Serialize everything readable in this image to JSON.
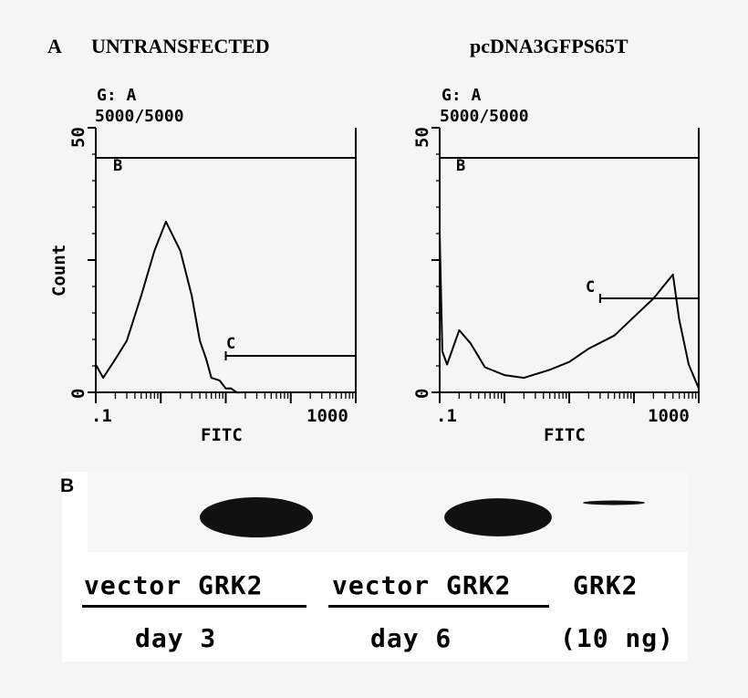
{
  "panel_a": {
    "label": "A",
    "left_title": "UNTRANSFECTED",
    "right_title": "pcDNA3GFPS65T"
  },
  "histograms": [
    {
      "gate_line1": "G: A",
      "gate_line2": "5000/5000",
      "y_axis_label": "Count",
      "y_tick_top": "50",
      "y_tick_bottom": "0",
      "x_tick_left": ".1",
      "x_tick_right": "1000",
      "x_axis_label": "FITC",
      "gate_b_label": "B",
      "gate_c_label": "C"
    },
    {
      "gate_line1": "G: A",
      "gate_line2": "5000/5000",
      "y_axis_label": "",
      "y_tick_top": "50",
      "y_tick_bottom": "0",
      "x_tick_left": ".1",
      "x_tick_right": "1000",
      "x_axis_label": "FITC",
      "gate_b_label": "B",
      "gate_c_label": "C"
    }
  ],
  "chart_data": [
    {
      "type": "area",
      "title": "UNTRANSFECTED",
      "xlabel": "FITC",
      "ylabel": "Count",
      "x_scale": "log",
      "xlim": [
        0.1,
        1000
      ],
      "ylim": [
        0,
        50
      ],
      "x": [
        0.1,
        0.13,
        0.2,
        0.3,
        0.5,
        0.8,
        1.2,
        2,
        3,
        4,
        5,
        6,
        8,
        10,
        12,
        15,
        20
      ],
      "y": [
        5,
        3,
        6,
        10,
        18,
        27,
        32,
        27,
        18,
        10,
        6,
        3,
        2,
        1,
        0.5,
        0.2,
        0
      ],
      "gates": [
        {
          "name": "B",
          "range": [
            0.1,
            1000
          ]
        },
        {
          "name": "C",
          "range": [
            10,
            1000
          ]
        }
      ]
    },
    {
      "type": "area",
      "title": "pcDNA3GFPS65T",
      "xlabel": "FITC",
      "ylabel": "",
      "x_scale": "log",
      "xlim": [
        0.1,
        1000
      ],
      "ylim": [
        0,
        50
      ],
      "x": [
        0.1,
        0.11,
        0.13,
        0.2,
        0.3,
        0.5,
        1,
        2,
        5,
        10,
        20,
        50,
        100,
        200,
        400,
        500,
        700,
        1000
      ],
      "y": [
        30,
        8,
        5,
        12,
        9,
        5,
        3,
        3,
        4,
        6,
        8,
        11,
        14,
        18,
        22,
        14,
        5,
        1
      ],
      "gates": [
        {
          "name": "B",
          "range": [
            0.1,
            1000
          ]
        },
        {
          "name": "C",
          "range": [
            30,
            1000
          ]
        }
      ]
    }
  ],
  "panel_b": {
    "label": "B",
    "lanes": [
      {
        "name": "vector",
        "intensity": 0
      },
      {
        "name": "GRK2",
        "intensity": 1.0
      },
      {
        "name": "vector",
        "intensity": 0
      },
      {
        "name": "GRK2",
        "intensity": 0.95
      },
      {
        "name": "GRK2",
        "intensity": 0.15
      }
    ],
    "group1_label": "vector GRK2",
    "group2_label": "vector GRK2",
    "standard_label": "GRK2",
    "group1_day": "day 3",
    "group2_day": "day 6",
    "standard_amount": "(10 ng)"
  }
}
